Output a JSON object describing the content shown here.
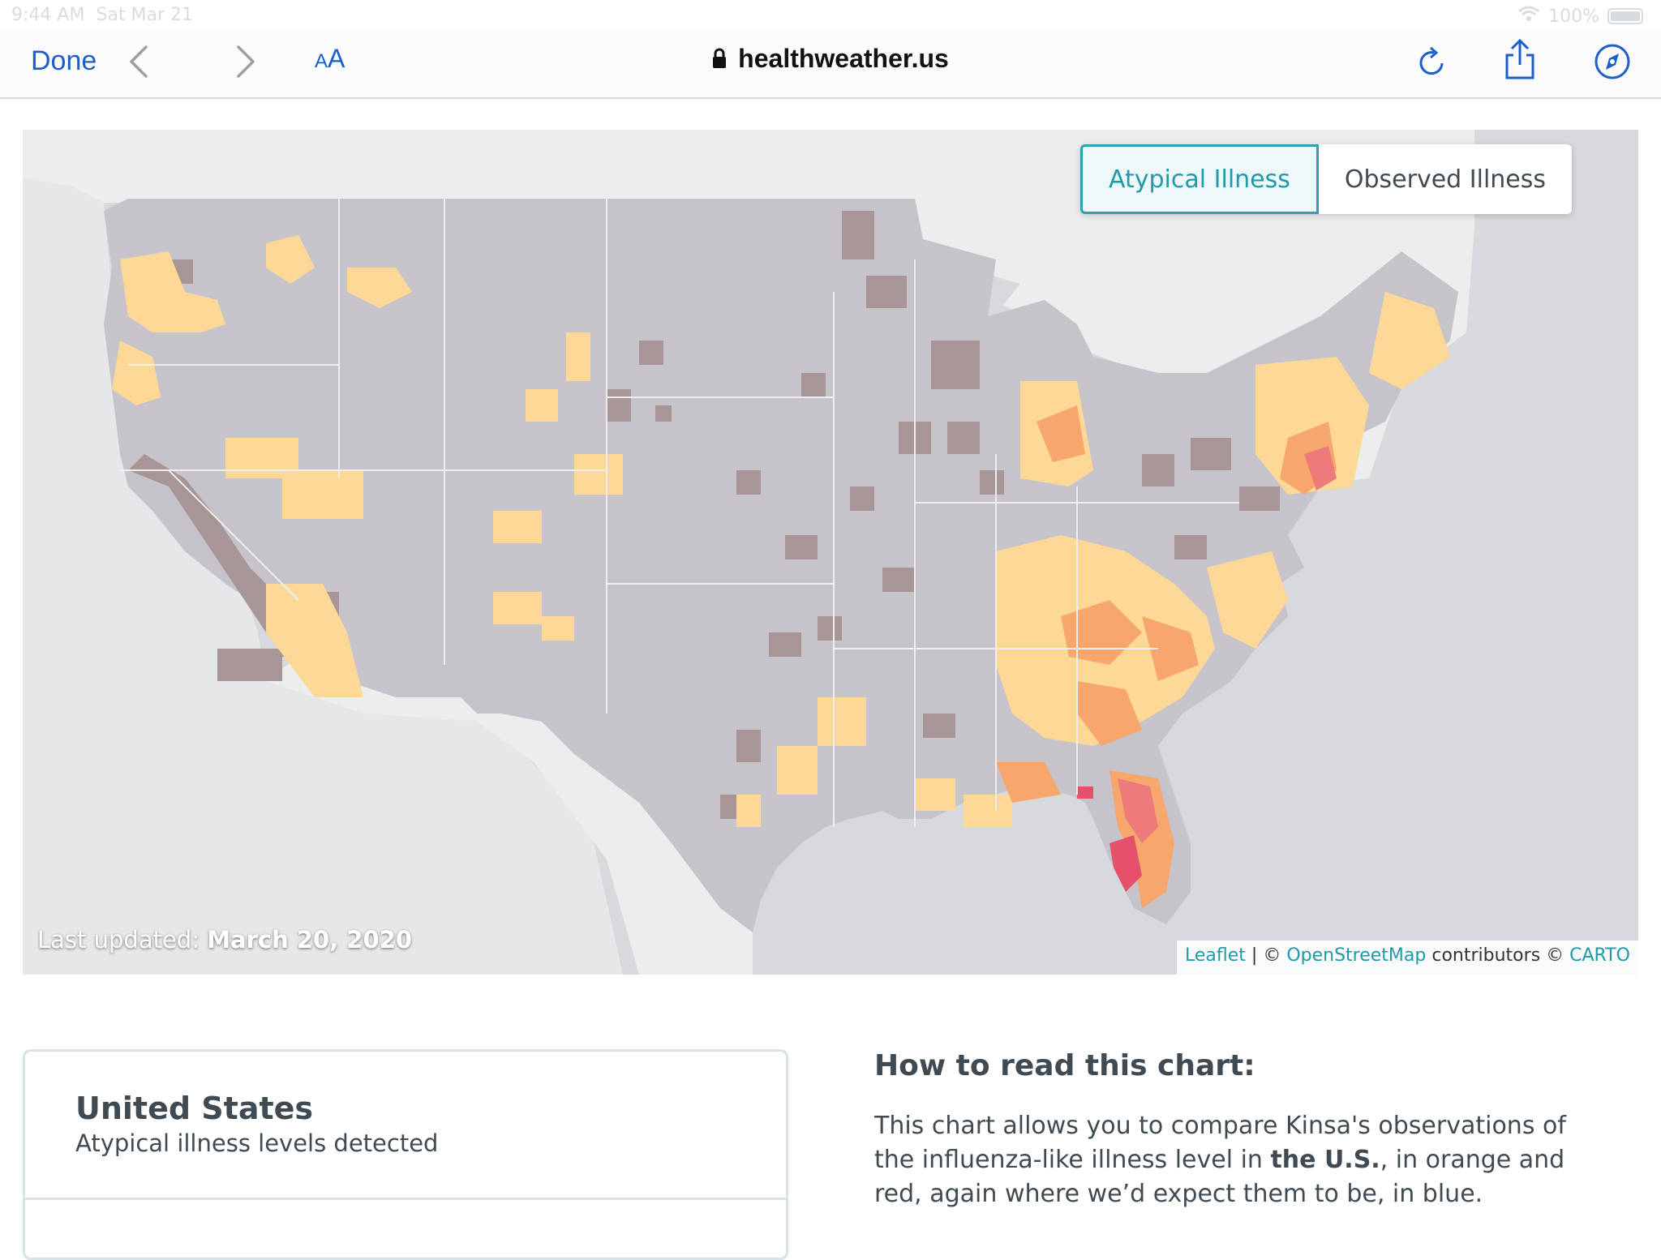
{
  "status_bar": {
    "time": "9:44 AM",
    "date": "Sat Mar 21",
    "battery": "100%"
  },
  "toolbar": {
    "done_label": "Done",
    "text_size_label_small": "A",
    "text_size_label_large": "A",
    "url": "healthweather.us"
  },
  "map": {
    "toggle": {
      "atypical_label": "Atypical Illness",
      "observed_label": "Observed Illness",
      "active": "atypical"
    },
    "updated_prefix": "Last updated:",
    "updated_date": "March 20, 2020",
    "attribution": {
      "leaflet": "Leaflet",
      "sep": " | © ",
      "osm": "OpenStreetMap",
      "contrib": " contributors © ",
      "carto": "CARTO"
    },
    "colors": {
      "no_data": "#c6c3cb",
      "below_expected": "#a89596",
      "low": "#fdd896",
      "moderate": "#f7a66c",
      "high": "#ee7b7b",
      "very_high": "#e5506a"
    }
  },
  "card": {
    "title": "United States",
    "subtitle": "Atypical illness levels detected"
  },
  "howto": {
    "title": "How to read this chart:",
    "text_1": "This chart allows you to compare Kinsa's observations of the influenza-like illness level in ",
    "text_bold": "the U.S.",
    "text_2": ", in orange and red, again where we’d expect them to be, in blue."
  }
}
